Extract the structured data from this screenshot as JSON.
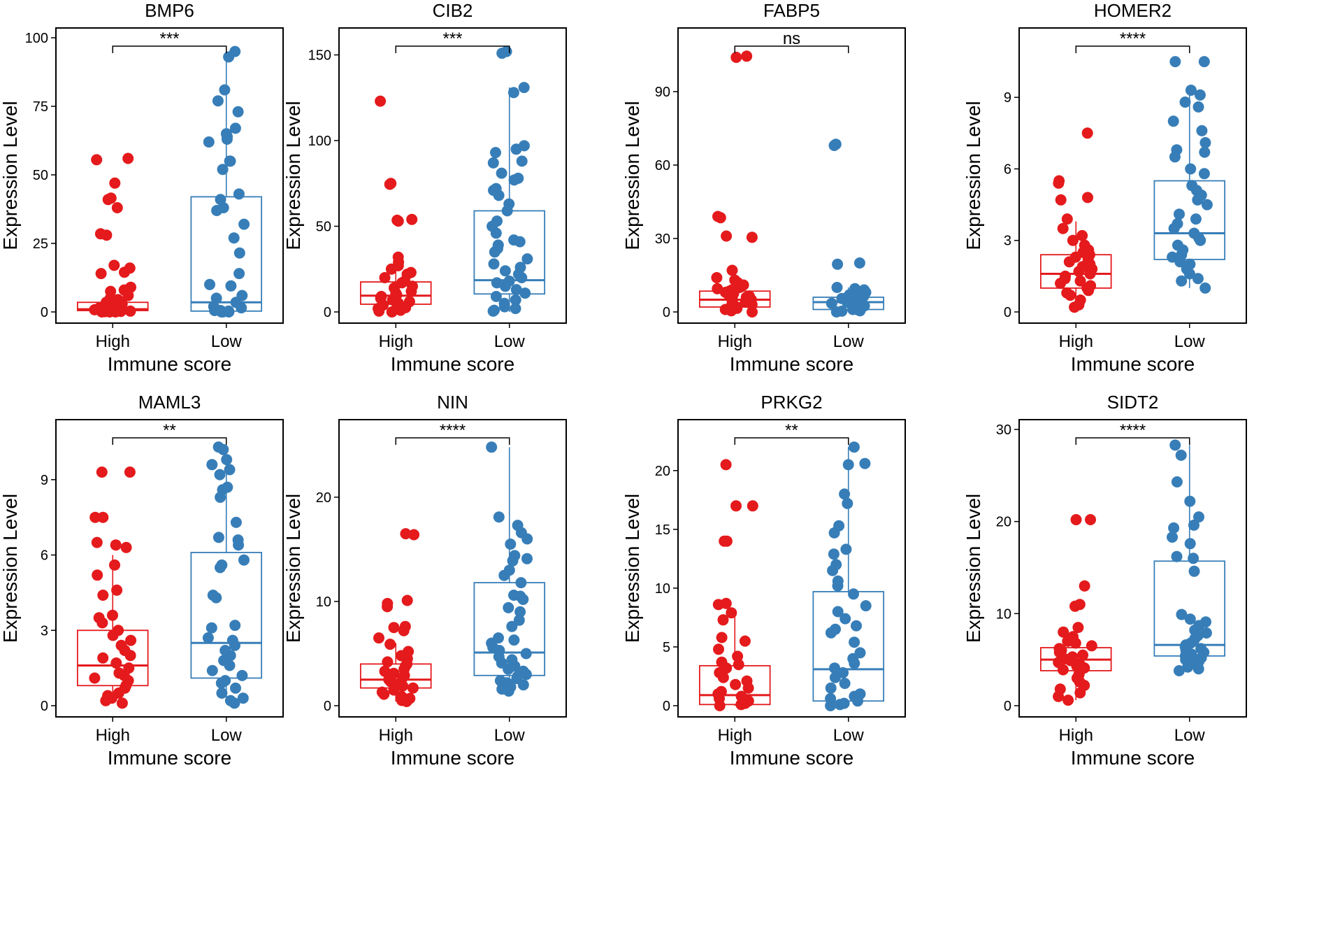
{
  "chart_data": [
    {
      "type": "box",
      "title": "BMP6",
      "xlabel": "Immune score",
      "ylabel": "Expression Level",
      "categories": [
        "High",
        "Low"
      ],
      "ylim": [
        0,
        100
      ],
      "yticks": [
        0,
        25,
        50,
        75,
        100
      ],
      "significance": "***",
      "box_stats": [
        {
          "group": "High",
          "q1": 0.5,
          "median": 1.0,
          "q3": 3.5,
          "whisker_low": 0,
          "whisker_high": 8
        },
        {
          "group": "Low",
          "q1": 0.3,
          "median": 3.5,
          "q3": 42,
          "whisker_low": 0,
          "whisker_high": 95
        }
      ],
      "points": [
        [
          56,
          55.5,
          47,
          41,
          41.5,
          38,
          28.5,
          28,
          17,
          16,
          14.5,
          14,
          9,
          8,
          7.5,
          6,
          5,
          4.5,
          3.5,
          3,
          2.5,
          2,
          1.5,
          1.5,
          1,
          1,
          0.8,
          0.5,
          0.5,
          0.3,
          0.2,
          0.1,
          0,
          0,
          0
        ],
        [
          95,
          93,
          81,
          77,
          73,
          67,
          65,
          64,
          63,
          62,
          55,
          55,
          52,
          43,
          41,
          38,
          37,
          32,
          27,
          21.5,
          14,
          10,
          9.5,
          6,
          5,
          3.5,
          2,
          1.5,
          0.5,
          0.5,
          0.3,
          0,
          0,
          0
        ]
      ]
    },
    {
      "type": "box",
      "title": "CIB2",
      "xlabel": "Immune score",
      "ylabel": "Expression Level",
      "categories": [
        "High",
        "Low"
      ],
      "ylim": [
        0,
        160
      ],
      "yticks": [
        0,
        50,
        100,
        150
      ],
      "significance": "***",
      "box_stats": [
        {
          "group": "High",
          "q1": 4.5,
          "median": 9.5,
          "q3": 17.5,
          "whisker_low": 0,
          "whisker_high": 34
        },
        {
          "group": "Low",
          "q1": 10.5,
          "median": 18.5,
          "q3": 59,
          "whisker_low": 0,
          "whisker_high": 131
        }
      ],
      "points": [
        [
          123,
          75,
          74.5,
          54,
          53.5,
          53,
          32,
          29,
          27,
          25,
          23,
          22,
          20,
          18,
          17,
          15,
          14,
          12,
          11,
          10,
          9.5,
          9,
          8,
          7,
          6,
          5,
          4,
          3,
          2.5,
          2,
          1,
          0.5,
          0
        ],
        [
          152,
          151,
          131,
          128,
          97,
          95,
          93,
          88,
          87,
          81,
          78,
          77,
          72,
          71,
          68,
          63,
          59,
          53,
          50,
          46,
          42,
          41,
          39,
          37,
          35,
          31,
          28,
          26,
          24,
          22,
          20,
          18,
          17,
          15,
          13,
          11,
          9,
          7,
          5,
          3,
          2,
          1,
          0.5
        ]
      ]
    },
    {
      "type": "box",
      "title": "FABP5",
      "xlabel": "Immune score",
      "ylabel": "Expression Level",
      "categories": [
        "High",
        "Low"
      ],
      "ylim": [
        0,
        112
      ],
      "yticks": [
        0,
        30,
        60,
        90
      ],
      "significance": "ns",
      "box_stats": [
        {
          "group": "High",
          "q1": 2.0,
          "median": 5.0,
          "q3": 8.5,
          "whisker_low": 0,
          "whisker_high": 14
        },
        {
          "group": "Low",
          "q1": 1.0,
          "median": 4.0,
          "q3": 6.0,
          "whisker_low": 0,
          "whisker_high": 10
        }
      ],
      "points": [
        [
          104.5,
          104,
          39,
          38.5,
          31,
          30.5,
          17,
          14,
          13,
          12,
          11,
          10,
          9.5,
          9,
          8.5,
          8,
          7.5,
          7,
          6.5,
          6,
          5.5,
          5,
          4.5,
          4,
          3.5,
          3,
          2.5,
          2,
          1.5,
          1,
          0.5,
          0
        ],
        [
          68.5,
          68,
          20,
          19.5,
          10,
          9.5,
          9,
          8.5,
          8,
          7.5,
          7,
          6.5,
          6,
          5.5,
          5,
          4.5,
          4,
          3.5,
          3,
          2.5,
          2,
          1.5,
          1,
          0.8,
          0.5,
          0.3,
          0
        ]
      ]
    },
    {
      "type": "box",
      "title": "HOMER2",
      "xlabel": "Immune score",
      "ylabel": "Expression Level",
      "categories": [
        "High",
        "Low"
      ],
      "ylim": [
        0,
        11.5
      ],
      "yticks": [
        0,
        3,
        6,
        9
      ],
      "significance": "****",
      "box_stats": [
        {
          "group": "High",
          "q1": 1.0,
          "median": 1.6,
          "q3": 2.4,
          "whisker_low": 0.2,
          "whisker_high": 3.8
        },
        {
          "group": "Low",
          "q1": 2.2,
          "median": 3.3,
          "q3": 5.5,
          "whisker_low": 1.0,
          "whisker_high": 9.3
        }
      ],
      "points": [
        [
          7.5,
          5.5,
          5.4,
          4.8,
          4.7,
          3.9,
          3.5,
          3.2,
          3.0,
          2.8,
          2.6,
          2.5,
          2.4,
          2.3,
          2.2,
          2.1,
          2.0,
          1.9,
          1.8,
          1.7,
          1.6,
          1.5,
          1.4,
          1.3,
          1.2,
          1.1,
          1.0,
          0.9,
          0.8,
          0.7,
          0.5,
          0.3,
          0.2
        ],
        [
          10.5,
          10.5,
          9.3,
          9.1,
          8.8,
          8.6,
          8.0,
          7.6,
          7.1,
          6.8,
          6.7,
          6.5,
          6.0,
          5.8,
          5.3,
          5.1,
          4.9,
          4.7,
          4.5,
          4.1,
          3.9,
          3.7,
          3.5,
          3.3,
          3.1,
          3.0,
          2.8,
          2.6,
          2.4,
          2.3,
          2.1,
          2.0,
          1.8,
          1.6,
          1.4,
          1.3,
          1.0
        ]
      ]
    },
    {
      "type": "box",
      "title": "MAML3",
      "xlabel": "Immune score",
      "ylabel": "Expression Level",
      "categories": [
        "High",
        "Low"
      ],
      "ylim": [
        0,
        11
      ],
      "yticks": [
        0,
        3,
        6,
        9
      ],
      "significance": "**",
      "box_stats": [
        {
          "group": "High",
          "q1": 0.8,
          "median": 1.6,
          "q3": 3.0,
          "whisker_low": 0.1,
          "whisker_high": 6.0
        },
        {
          "group": "Low",
          "q1": 1.1,
          "median": 2.5,
          "q3": 6.1,
          "whisker_low": 0.1,
          "whisker_high": 10.3
        }
      ],
      "points": [
        [
          9.3,
          9.3,
          7.5,
          7.5,
          6.5,
          6.4,
          6.3,
          5.6,
          5.2,
          4.6,
          4.4,
          3.6,
          3.5,
          3.3,
          3.0,
          2.8,
          2.6,
          2.4,
          2.2,
          2.0,
          1.9,
          1.7,
          1.5,
          1.3,
          1.2,
          1.1,
          1.0,
          0.8,
          0.7,
          0.5,
          0.4,
          0.3,
          0.2,
          0.1
        ],
        [
          10.3,
          10.2,
          9.8,
          9.6,
          9.4,
          9.2,
          8.7,
          8.6,
          8.3,
          7.3,
          6.7,
          6.6,
          6.4,
          5.8,
          5.6,
          5.5,
          4.4,
          4.3,
          3.2,
          3.1,
          2.7,
          2.6,
          2.4,
          2.2,
          2.0,
          1.8,
          1.6,
          1.4,
          1.2,
          1.0,
          0.9,
          0.7,
          0.5,
          0.3,
          0.2,
          0.1
        ]
      ]
    },
    {
      "type": "box",
      "title": "NIN",
      "xlabel": "Immune score",
      "ylabel": "Expression Level",
      "categories": [
        "High",
        "Low"
      ],
      "ylim": [
        0,
        26.5
      ],
      "yticks": [
        0,
        10,
        20
      ],
      "significance": "****",
      "box_stats": [
        {
          "group": "High",
          "q1": 1.7,
          "median": 2.5,
          "q3": 4.0,
          "whisker_low": 0.4,
          "whisker_high": 6.0
        },
        {
          "group": "Low",
          "q1": 2.9,
          "median": 5.1,
          "q3": 11.8,
          "whisker_low": 1.4,
          "whisker_high": 24.8
        }
      ],
      "points": [
        [
          16.5,
          16.4,
          10.1,
          9.8,
          9.5,
          7.6,
          7.5,
          7.2,
          6.5,
          5.9,
          5.2,
          4.8,
          4.5,
          4.2,
          4.0,
          3.8,
          3.5,
          3.3,
          3.1,
          2.9,
          2.7,
          2.5,
          2.3,
          2.1,
          1.9,
          1.7,
          1.5,
          1.3,
          1.1,
          0.9,
          0.7,
          0.5,
          0.4
        ],
        [
          24.8,
          18.1,
          17.3,
          16.6,
          16.0,
          15.5,
          14.4,
          14.1,
          13.9,
          13.0,
          12.5,
          11.8,
          10.6,
          10.5,
          10.2,
          9.4,
          9.0,
          8.2,
          7.6,
          6.5,
          6.3,
          6.0,
          5.6,
          5.3,
          5.0,
          4.7,
          4.4,
          4.1,
          3.8,
          3.5,
          3.3,
          3.0,
          2.8,
          2.6,
          2.4,
          2.2,
          2.0,
          1.8,
          1.6,
          1.4
        ]
      ]
    },
    {
      "type": "box",
      "title": "PRKG2",
      "xlabel": "Immune score",
      "ylabel": "Expression Level",
      "categories": [
        "High",
        "Low"
      ],
      "ylim": [
        0,
        23.5
      ],
      "yticks": [
        0,
        5,
        10,
        15,
        20
      ],
      "significance": "**",
      "box_stats": [
        {
          "group": "High",
          "q1": 0.1,
          "median": 0.9,
          "q3": 3.4,
          "whisker_low": 0,
          "whisker_high": 7.8
        },
        {
          "group": "Low",
          "q1": 0.4,
          "median": 3.1,
          "q3": 9.7,
          "whisker_low": 0,
          "whisker_high": 22
        }
      ],
      "points": [
        [
          20.5,
          17.0,
          17.0,
          14.0,
          14.0,
          8.7,
          8.6,
          7.9,
          7.3,
          5.8,
          5.5,
          4.8,
          4.2,
          3.7,
          3.5,
          3.2,
          2.8,
          2.4,
          2.1,
          1.8,
          1.5,
          1.2,
          1.0,
          0.8,
          0.6,
          0.4,
          0.3,
          0.2,
          0.1,
          0
        ],
        [
          22.0,
          20.6,
          20.5,
          18.0,
          17.2,
          15.3,
          14.7,
          13.3,
          12.9,
          12.0,
          11.5,
          10.6,
          10.2,
          9.5,
          8.5,
          8.0,
          7.4,
          6.8,
          6.5,
          6.2,
          5.4,
          4.5,
          4.0,
          3.6,
          3.2,
          2.8,
          2.4,
          1.9,
          1.5,
          1.0,
          0.8,
          0.6,
          0.4,
          0.2,
          0.1,
          0
        ]
      ]
    },
    {
      "type": "box",
      "title": "SIDT2",
      "xlabel": "Immune score",
      "ylabel": "Expression Level",
      "categories": [
        "High",
        "Low"
      ],
      "ylim": [
        0,
        30
      ],
      "yticks": [
        0,
        10,
        20,
        30
      ],
      "significance": "****",
      "box_stats": [
        {
          "group": "High",
          "q1": 3.8,
          "median": 5.0,
          "q3": 6.3,
          "whisker_low": 0.6,
          "whisker_high": 8.5
        },
        {
          "group": "Low",
          "q1": 5.4,
          "median": 6.6,
          "q3": 15.7,
          "whisker_low": 3.8,
          "whisker_high": 28.3
        }
      ],
      "points": [
        [
          20.2,
          20.2,
          13.0,
          11.0,
          10.8,
          8.5,
          8.0,
          7.5,
          7.0,
          6.8,
          6.5,
          6.2,
          6.0,
          5.8,
          5.5,
          5.3,
          5.1,
          4.9,
          4.7,
          4.5,
          4.3,
          4.1,
          3.9,
          3.7,
          3.4,
          3.0,
          2.6,
          2.2,
          1.8,
          1.4,
          1.0,
          0.6
        ],
        [
          28.3,
          27.2,
          24.3,
          22.2,
          20.5,
          19.6,
          19.3,
          18.3,
          17.6,
          16.2,
          16.0,
          14.6,
          9.9,
          9.4,
          9.1,
          8.7,
          8.2,
          7.9,
          7.6,
          7.3,
          7.0,
          6.8,
          6.6,
          6.4,
          6.2,
          6.0,
          5.8,
          5.6,
          5.4,
          5.2,
          5.0,
          4.8,
          4.6,
          4.4,
          4.2,
          4.0,
          3.8
        ]
      ]
    }
  ],
  "colors": {
    "high": "#e41a1c",
    "low": "#377eb8",
    "axis": "#000000"
  }
}
